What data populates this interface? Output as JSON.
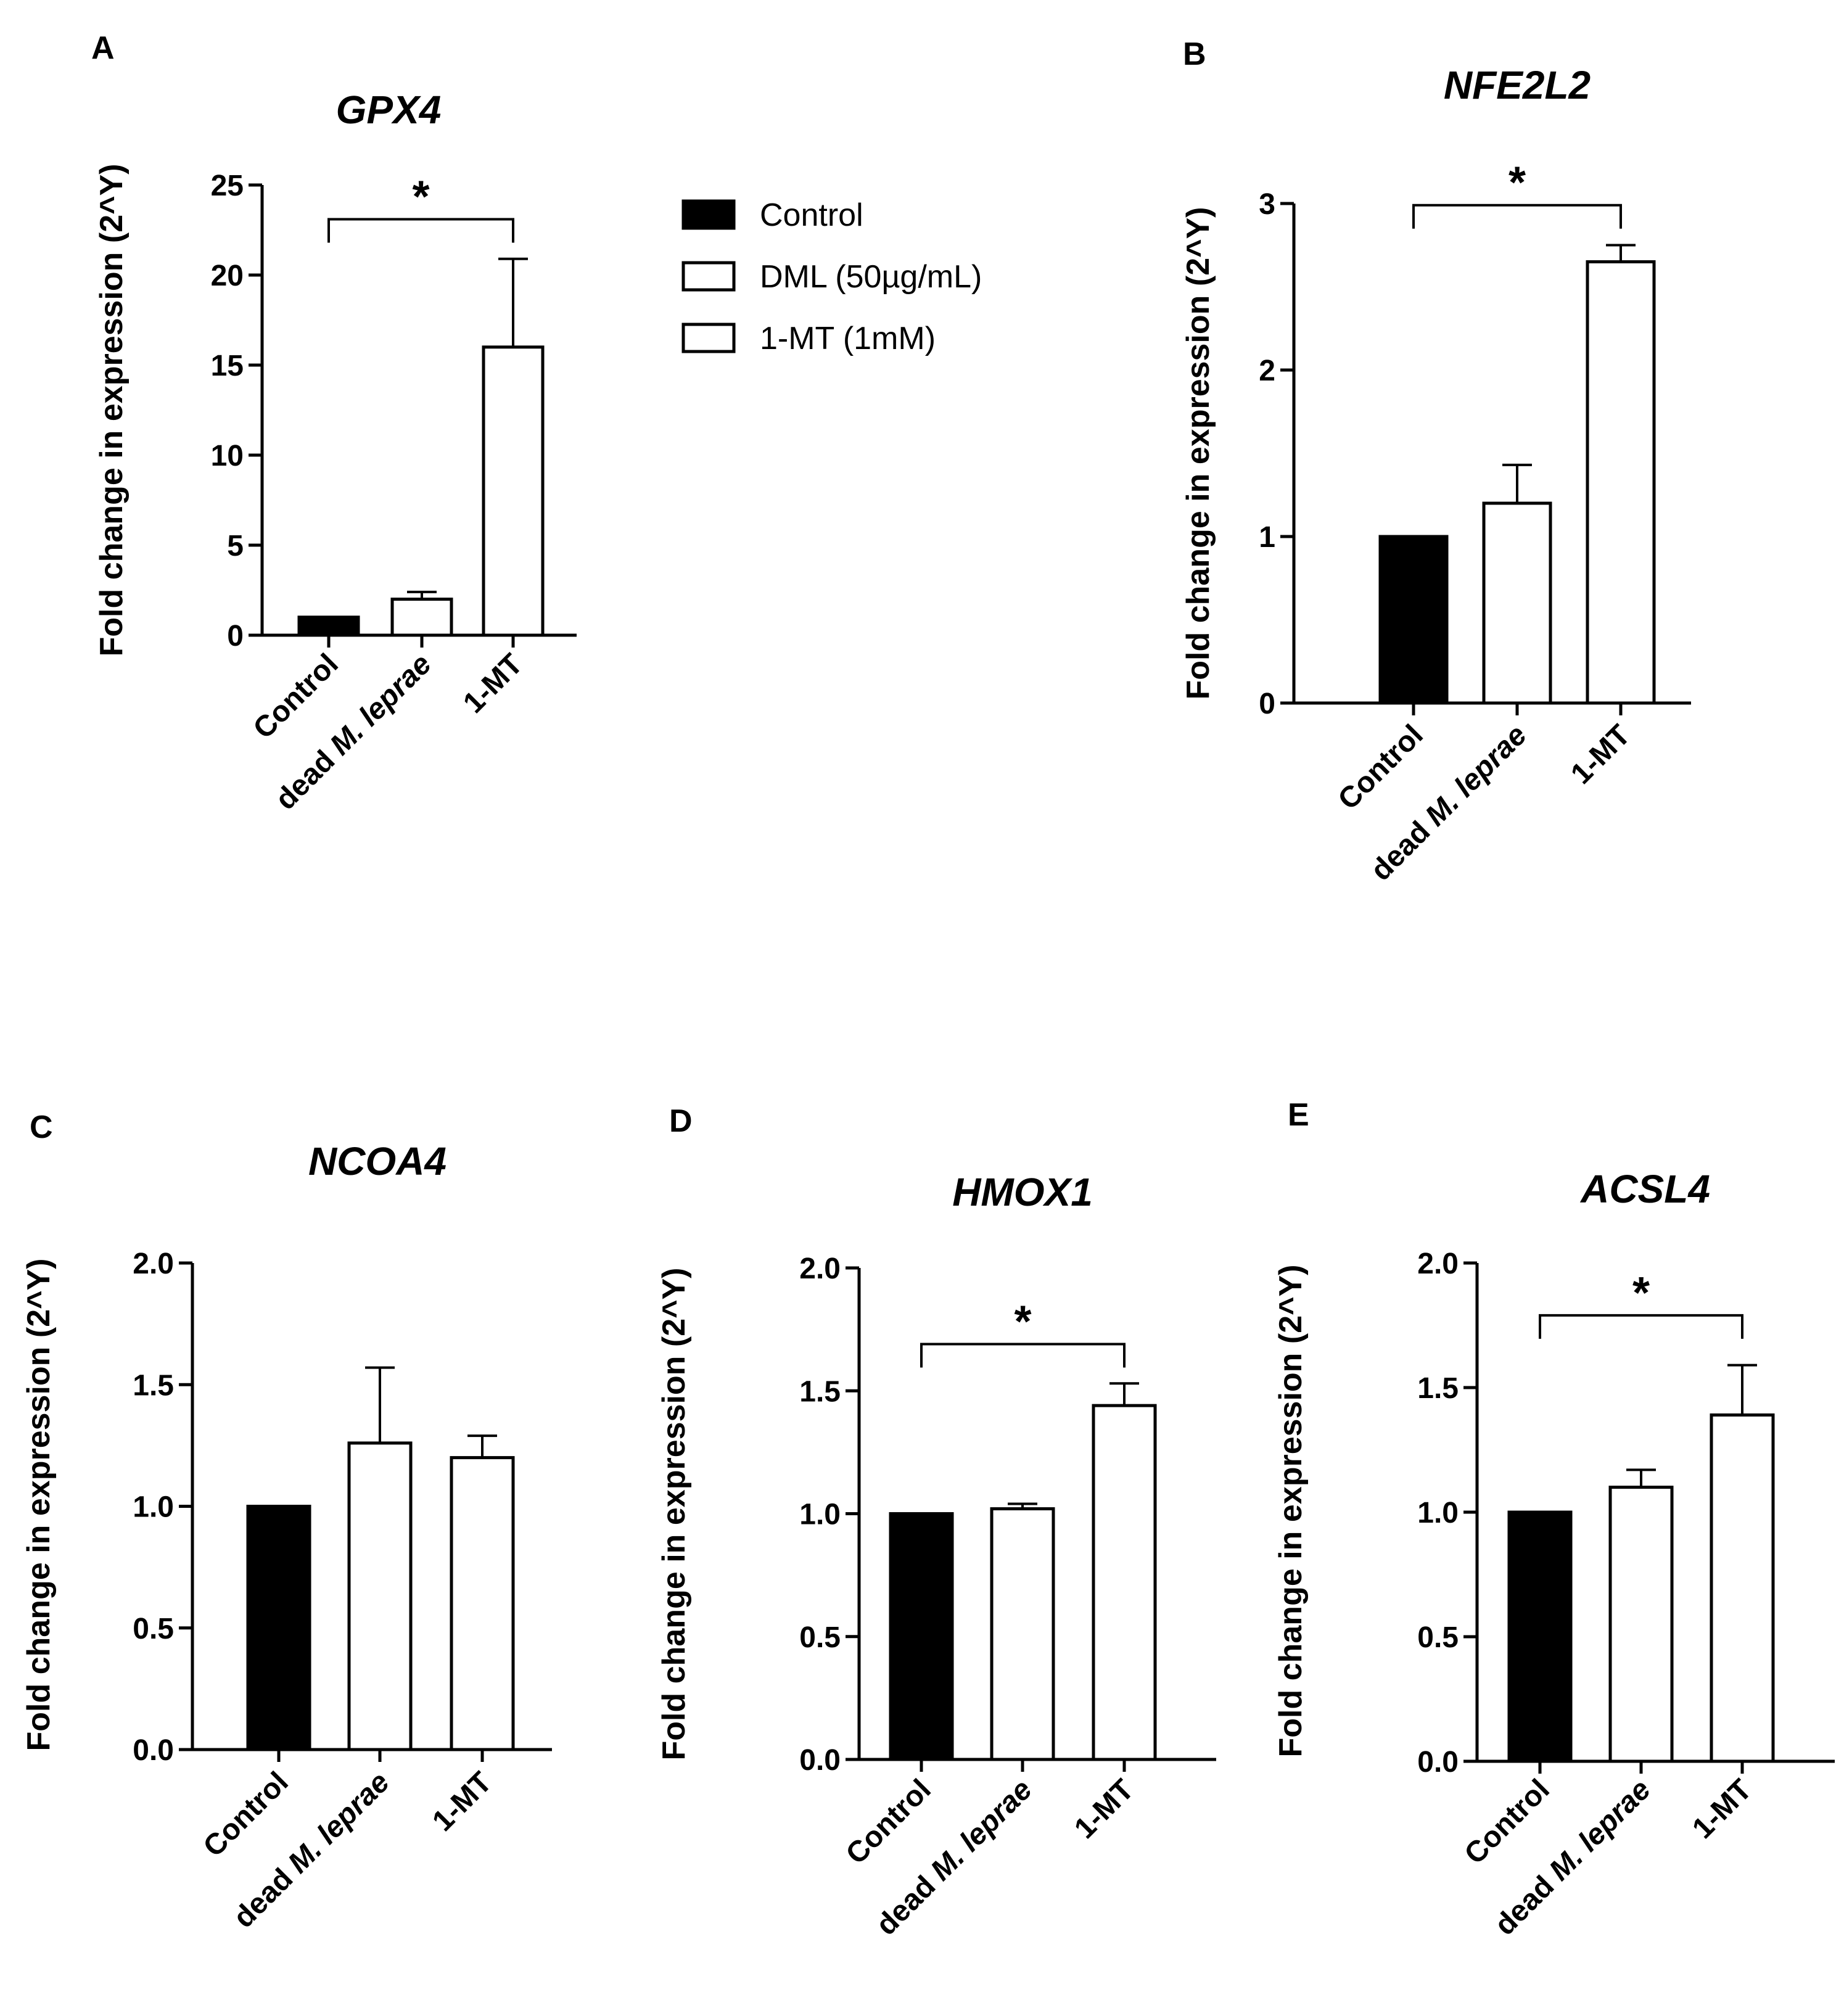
{
  "figure": {
    "legend": [
      {
        "label": "Control",
        "fill": "#000000"
      },
      {
        "label": "DML (50µg/mL)",
        "fill": "#ffffff"
      },
      {
        "label": "1-MT (1mM)",
        "fill": "#ffffff"
      }
    ]
  },
  "chart_data": [
    {
      "panel": "A",
      "type": "bar",
      "title": "GPX4",
      "ylabel": "Fold change in expression (2^Y)",
      "categories": [
        "Control",
        "dead M. leprae",
        "1-MT"
      ],
      "values": [
        1.0,
        2.0,
        16.0
      ],
      "errors": [
        0,
        0.4,
        4.9
      ],
      "ylim": [
        0,
        25
      ],
      "yticks": [
        0,
        5,
        10,
        15,
        20,
        25
      ],
      "tick_labels": [
        "0",
        "5",
        "10",
        "15",
        "20",
        "25"
      ],
      "significance": {
        "from": "Control",
        "to": "1-MT",
        "label": "*",
        "y": 23.1
      }
    },
    {
      "panel": "B",
      "type": "bar",
      "title": "NFE2L2",
      "ylabel": "Fold change in expression (2^Y)",
      "categories": [
        "Control",
        "dead M. leprae",
        "1-MT"
      ],
      "values": [
        1.0,
        1.2,
        2.65
      ],
      "errors": [
        0,
        0.23,
        0.1
      ],
      "ylim": [
        0,
        3
      ],
      "yticks": [
        0,
        1,
        2,
        3
      ],
      "tick_labels": [
        "0",
        "1",
        "2",
        "3"
      ],
      "significance": {
        "from": "Control",
        "to": "1-MT",
        "label": "*",
        "y": 2.99
      }
    },
    {
      "panel": "C",
      "type": "bar",
      "title": "NCOA4",
      "ylabel": "Fold change in expression (2^Y)",
      "categories": [
        "Control",
        "dead M. leprae",
        "1-MT"
      ],
      "values": [
        1.0,
        1.26,
        1.2
      ],
      "errors": [
        0,
        0.31,
        0.09
      ],
      "ylim": [
        0,
        2.0
      ],
      "yticks": [
        0,
        0.5,
        1.0,
        1.5,
        2.0
      ],
      "tick_labels": [
        "0.0",
        "0.5",
        "1.0",
        "1.5",
        "2.0"
      ],
      "significance": null
    },
    {
      "panel": "D",
      "type": "bar",
      "title": "HMOX1",
      "ylabel": "Fold change in expression (2^Y)",
      "categories": [
        "Control",
        "dead M. leprae",
        "1-MT"
      ],
      "values": [
        1.0,
        1.02,
        1.44
      ],
      "errors": [
        0,
        0.02,
        0.09
      ],
      "ylim": [
        0,
        2.0
      ],
      "yticks": [
        0,
        0.5,
        1.0,
        1.5,
        2.0
      ],
      "tick_labels": [
        "0.0",
        "0.5",
        "1.0",
        "1.5",
        "2.0"
      ],
      "significance": {
        "from": "Control",
        "to": "1-MT",
        "label": "*",
        "y": 1.69
      }
    },
    {
      "panel": "E",
      "type": "bar",
      "title": "ACSL4",
      "ylabel": "Fold change in expression (2^Y)",
      "categories": [
        "Control",
        "dead M. leprae",
        "1-MT"
      ],
      "values": [
        1.0,
        1.1,
        1.39
      ],
      "errors": [
        0,
        0.07,
        0.2
      ],
      "ylim": [
        0,
        2.0
      ],
      "yticks": [
        0,
        0.5,
        1.0,
        1.5,
        2.0
      ],
      "tick_labels": [
        "0.0",
        "0.5",
        "1.0",
        "1.5",
        "2.0"
      ],
      "significance": {
        "from": "Control",
        "to": "1-MT",
        "label": "*",
        "y": 1.79
      }
    }
  ]
}
